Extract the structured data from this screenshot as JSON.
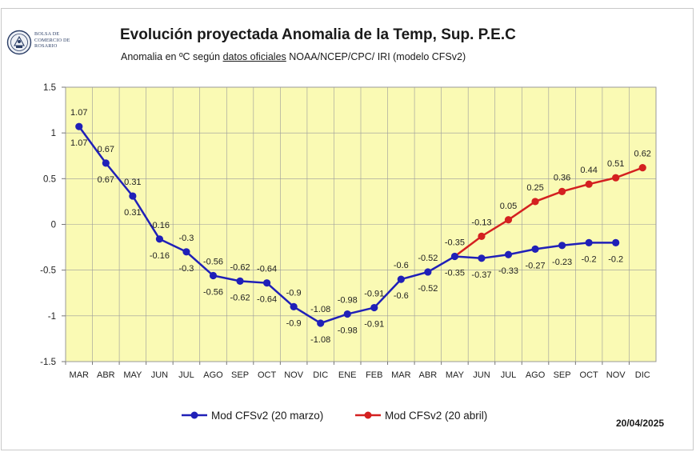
{
  "header": {
    "logo_text": "BOLSA DE COMERCIO DE ROSARIO",
    "title": "Evolución proyectada Anomalia de la Temp, Sup.  P.E.C",
    "subtitle_pre": "Anomalia en ºC según ",
    "subtitle_link": "datos oficiales",
    "subtitle_post": " NOAA/NCEP/CPC/ IRI (modelo CFSv2)"
  },
  "date_label": "20/04/2025",
  "chart_data": {
    "type": "line",
    "title": "Evolución proyectada Anomalia de la Temp, Sup.  P.E.C",
    "subtitle": "Anomalia en ºC según datos oficiales NOAA/NCEP/CPC/ IRI (modelo CFSv2)",
    "xlabel": "",
    "ylabel": "",
    "categories": [
      "MAR",
      "ABR",
      "MAY",
      "JUN",
      "JUL",
      "AGO",
      "SEP",
      "OCT",
      "NOV",
      "DIC",
      "ENE",
      "FEB",
      "MAR",
      "ABR",
      "MAY",
      "JUN",
      "JUL",
      "AGO",
      "SEP",
      "OCT",
      "NOV",
      "DIC"
    ],
    "ylim": [
      -1.5,
      1.5
    ],
    "yticks": [
      "1.5",
      "1",
      "0.5",
      "0",
      "-0.5",
      "-1",
      "-1.5"
    ],
    "ytick_values": [
      1.5,
      1,
      0.5,
      0,
      -0.5,
      -1,
      -1.5
    ],
    "grid": true,
    "legend_position": "bottom",
    "plot_background": "#fafab4",
    "series": [
      {
        "name": "Mod CFSv2 (20 marzo)",
        "color": "#2020b8",
        "values": [
          1.07,
          0.67,
          0.31,
          -0.16,
          -0.3,
          -0.56,
          -0.62,
          -0.64,
          -0.9,
          -1.08,
          -0.98,
          -0.91,
          -0.6,
          -0.52,
          -0.35,
          -0.37,
          -0.33,
          -0.27,
          -0.23,
          -0.2,
          -0.2,
          null
        ],
        "labels": [
          "1.07",
          "0.67",
          "0.31",
          "-0.16",
          "-0.3",
          "-0.56",
          "-0.62",
          "-0.64",
          "-0.9",
          "-1.08",
          "-0.98",
          "-0.91",
          "-0.6",
          "-0.52",
          "-0.35",
          "-0.37",
          "-0.33",
          "-0.27",
          "-0.23",
          "-0.2",
          "-0.2",
          ""
        ]
      },
      {
        "name": "Mod CFSv2 (20 abril)",
        "color": "#d42020",
        "values": [
          1.07,
          0.67,
          0.31,
          -0.16,
          -0.3,
          -0.56,
          -0.62,
          -0.64,
          -0.9,
          -1.08,
          -0.98,
          -0.91,
          -0.6,
          -0.52,
          -0.35,
          -0.13,
          0.05,
          0.25,
          0.36,
          0.44,
          0.51,
          0.62
        ],
        "labels": [
          "1.07",
          "0.67",
          "0.31",
          "-0.16",
          "-0.3",
          "-0.56",
          "-0.62",
          "-0.64",
          "-0.9",
          "-1.08",
          "-0.98",
          "-0.91",
          "-0.6",
          "-0.52",
          "-0.35",
          "-0.13",
          "0.05",
          "0.25",
          "0.36",
          "0.44",
          "0.51",
          "0.62"
        ]
      }
    ]
  }
}
